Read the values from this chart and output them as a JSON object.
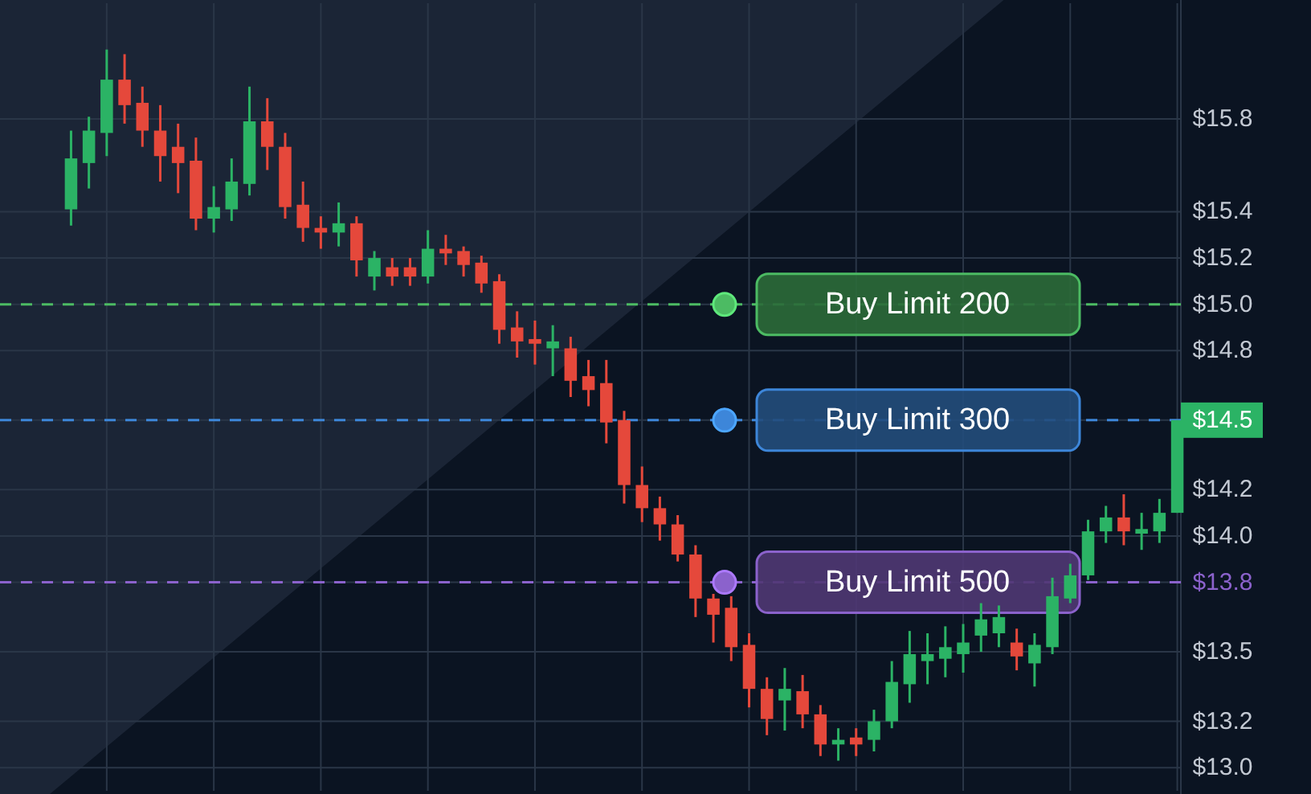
{
  "chart_data": {
    "type": "candlestick",
    "categories": [
      null,
      null,
      null,
      null,
      null,
      null,
      null,
      null,
      null,
      null,
      null,
      null,
      null,
      null,
      null,
      null,
      null,
      null,
      null,
      null,
      null,
      null,
      null,
      null,
      null,
      null,
      null,
      null,
      null,
      null,
      null,
      null,
      null,
      null,
      null,
      null,
      null,
      null,
      null,
      null,
      null,
      null,
      null,
      null,
      null,
      null,
      null,
      null,
      null,
      null,
      null,
      null,
      null,
      null,
      null,
      null,
      null,
      null,
      null,
      null,
      null,
      null,
      null
    ],
    "ohlc": [
      [
        15.41,
        15.75,
        15.34,
        15.63
      ],
      [
        15.61,
        15.81,
        15.5,
        15.75
      ],
      [
        15.74,
        16.1,
        15.64,
        15.97
      ],
      [
        15.97,
        16.08,
        15.78,
        15.86
      ],
      [
        15.87,
        15.94,
        15.68,
        15.75
      ],
      [
        15.75,
        15.86,
        15.53,
        15.64
      ],
      [
        15.68,
        15.78,
        15.48,
        15.61
      ],
      [
        15.62,
        15.72,
        15.32,
        15.37
      ],
      [
        15.37,
        15.51,
        15.31,
        15.42
      ],
      [
        15.41,
        15.63,
        15.36,
        15.53
      ],
      [
        15.52,
        15.94,
        15.47,
        15.79
      ],
      [
        15.79,
        15.89,
        15.58,
        15.68
      ],
      [
        15.68,
        15.74,
        15.37,
        15.42
      ],
      [
        15.43,
        15.53,
        15.27,
        15.33
      ],
      [
        15.33,
        15.38,
        15.24,
        15.31
      ],
      [
        15.31,
        15.44,
        15.25,
        15.35
      ],
      [
        15.35,
        15.38,
        15.12,
        15.19
      ],
      [
        15.12,
        15.23,
        15.06,
        15.2
      ],
      [
        15.16,
        15.2,
        15.08,
        15.12
      ],
      [
        15.16,
        15.2,
        15.08,
        15.12
      ],
      [
        15.12,
        15.32,
        15.09,
        15.24
      ],
      [
        15.24,
        15.3,
        15.17,
        15.22
      ],
      [
        15.23,
        15.25,
        15.12,
        15.17
      ],
      [
        15.18,
        15.21,
        15.05,
        15.09
      ],
      [
        15.1,
        15.13,
        14.83,
        14.89
      ],
      [
        14.9,
        14.97,
        14.77,
        14.84
      ],
      [
        14.85,
        14.93,
        14.74,
        14.83
      ],
      [
        14.81,
        14.91,
        14.69,
        14.84
      ],
      [
        14.81,
        14.86,
        14.6,
        14.67
      ],
      [
        14.69,
        14.76,
        14.56,
        14.63
      ],
      [
        14.66,
        14.76,
        14.4,
        14.49
      ],
      [
        14.5,
        14.54,
        14.14,
        14.22
      ],
      [
        14.22,
        14.3,
        14.06,
        14.12
      ],
      [
        14.12,
        14.17,
        13.98,
        14.05
      ],
      [
        14.05,
        14.09,
        13.89,
        13.92
      ],
      [
        13.92,
        13.96,
        13.65,
        13.73
      ],
      [
        13.73,
        13.75,
        13.54,
        13.66
      ],
      [
        13.69,
        13.74,
        13.46,
        13.52
      ],
      [
        13.53,
        13.58,
        13.26,
        13.34
      ],
      [
        13.34,
        13.39,
        13.14,
        13.21
      ],
      [
        13.29,
        13.43,
        13.16,
        13.34
      ],
      [
        13.33,
        13.4,
        13.17,
        13.23
      ],
      [
        13.23,
        13.27,
        13.05,
        13.1
      ],
      [
        13.1,
        13.17,
        13.03,
        13.12
      ],
      [
        13.13,
        13.17,
        13.05,
        13.1
      ],
      [
        13.12,
        13.25,
        13.07,
        13.2
      ],
      [
        13.2,
        13.46,
        13.17,
        13.37
      ],
      [
        13.36,
        13.59,
        13.28,
        13.49
      ],
      [
        13.46,
        13.58,
        13.36,
        13.49
      ],
      [
        13.47,
        13.61,
        13.39,
        13.52
      ],
      [
        13.49,
        13.62,
        13.41,
        13.54
      ],
      [
        13.57,
        13.71,
        13.5,
        13.64
      ],
      [
        13.58,
        13.7,
        13.52,
        13.65
      ],
      [
        13.54,
        13.6,
        13.42,
        13.48
      ],
      [
        13.45,
        13.58,
        13.35,
        13.53
      ],
      [
        13.52,
        13.82,
        13.49,
        13.74
      ],
      [
        13.73,
        13.88,
        13.71,
        13.83
      ],
      [
        13.83,
        14.07,
        13.81,
        14.02
      ],
      [
        14.02,
        14.13,
        13.97,
        14.08
      ],
      [
        14.08,
        14.18,
        13.96,
        14.02
      ],
      [
        14.01,
        14.1,
        13.94,
        14.03
      ],
      [
        14.02,
        14.16,
        13.97,
        14.1
      ],
      [
        14.1,
        14.5,
        14.1,
        14.5
      ]
    ],
    "colors": [
      "#2bb365",
      "#2bb365",
      "#2bb365",
      "#e5483b",
      "#e5483b",
      "#e5483b",
      "#e5483b",
      "#e5483b",
      "#2bb365",
      "#2bb365",
      "#2bb365",
      "#e5483b",
      "#e5483b",
      "#e5483b",
      "#e5483b",
      "#2bb365",
      "#e5483b",
      "#2bb365",
      "#e5483b",
      "#e5483b",
      "#2bb365",
      "#e5483b",
      "#e5483b",
      "#e5483b",
      "#e5483b",
      "#e5483b",
      "#e5483b",
      "#2bb365",
      "#e5483b",
      "#e5483b",
      "#e5483b",
      "#e5483b",
      "#e5483b",
      "#e5483b",
      "#e5483b",
      "#e5483b",
      "#e5483b",
      "#e5483b",
      "#e5483b",
      "#e5483b",
      "#2bb365",
      "#e5483b",
      "#e5483b",
      "#2bb365",
      "#e5483b",
      "#2bb365",
      "#2bb365",
      "#2bb365",
      "#2bb365",
      "#2bb365",
      "#2bb365",
      "#2bb365",
      "#2bb365",
      "#e5483b",
      "#2bb365",
      "#2bb365",
      "#2bb365",
      "#2bb365",
      "#2bb365",
      "#e5483b",
      "#2bb365",
      "#2bb365",
      "#2bb365"
    ],
    "ylim": [
      12.9,
      16.3
    ],
    "yticks": [
      {
        "value": 13.0,
        "label": "$13.0"
      },
      {
        "value": 13.2,
        "label": "$13.2"
      },
      {
        "value": 13.5,
        "label": "$13.5"
      },
      {
        "value": 13.8,
        "label": "$13.8"
      },
      {
        "value": 14.0,
        "label": "$14.0"
      },
      {
        "value": 14.2,
        "label": "$14.2"
      },
      {
        "value": 14.5,
        "label": "$14.5"
      },
      {
        "value": 14.8,
        "label": "$14.8"
      },
      {
        "value": 15.0,
        "label": "$15.0"
      },
      {
        "value": 15.2,
        "label": "$15.2"
      },
      {
        "value": 15.4,
        "label": "$15.4"
      },
      {
        "value": 15.8,
        "label": "$15.8"
      }
    ],
    "grid": true,
    "ref_lines": [
      {
        "axis": "y",
        "value": 15.0,
        "label": "Buy Limit 200",
        "color": "#4cbb63",
        "line_style": "dashed"
      },
      {
        "axis": "y",
        "value": 14.5,
        "label": "Buy Limit 300",
        "color": "#3d86d9",
        "line_style": "dashed"
      },
      {
        "axis": "y",
        "value": 13.8,
        "label": "Buy Limit 500",
        "color": "#8b62cc",
        "line_style": "dashed"
      }
    ]
  }
}
